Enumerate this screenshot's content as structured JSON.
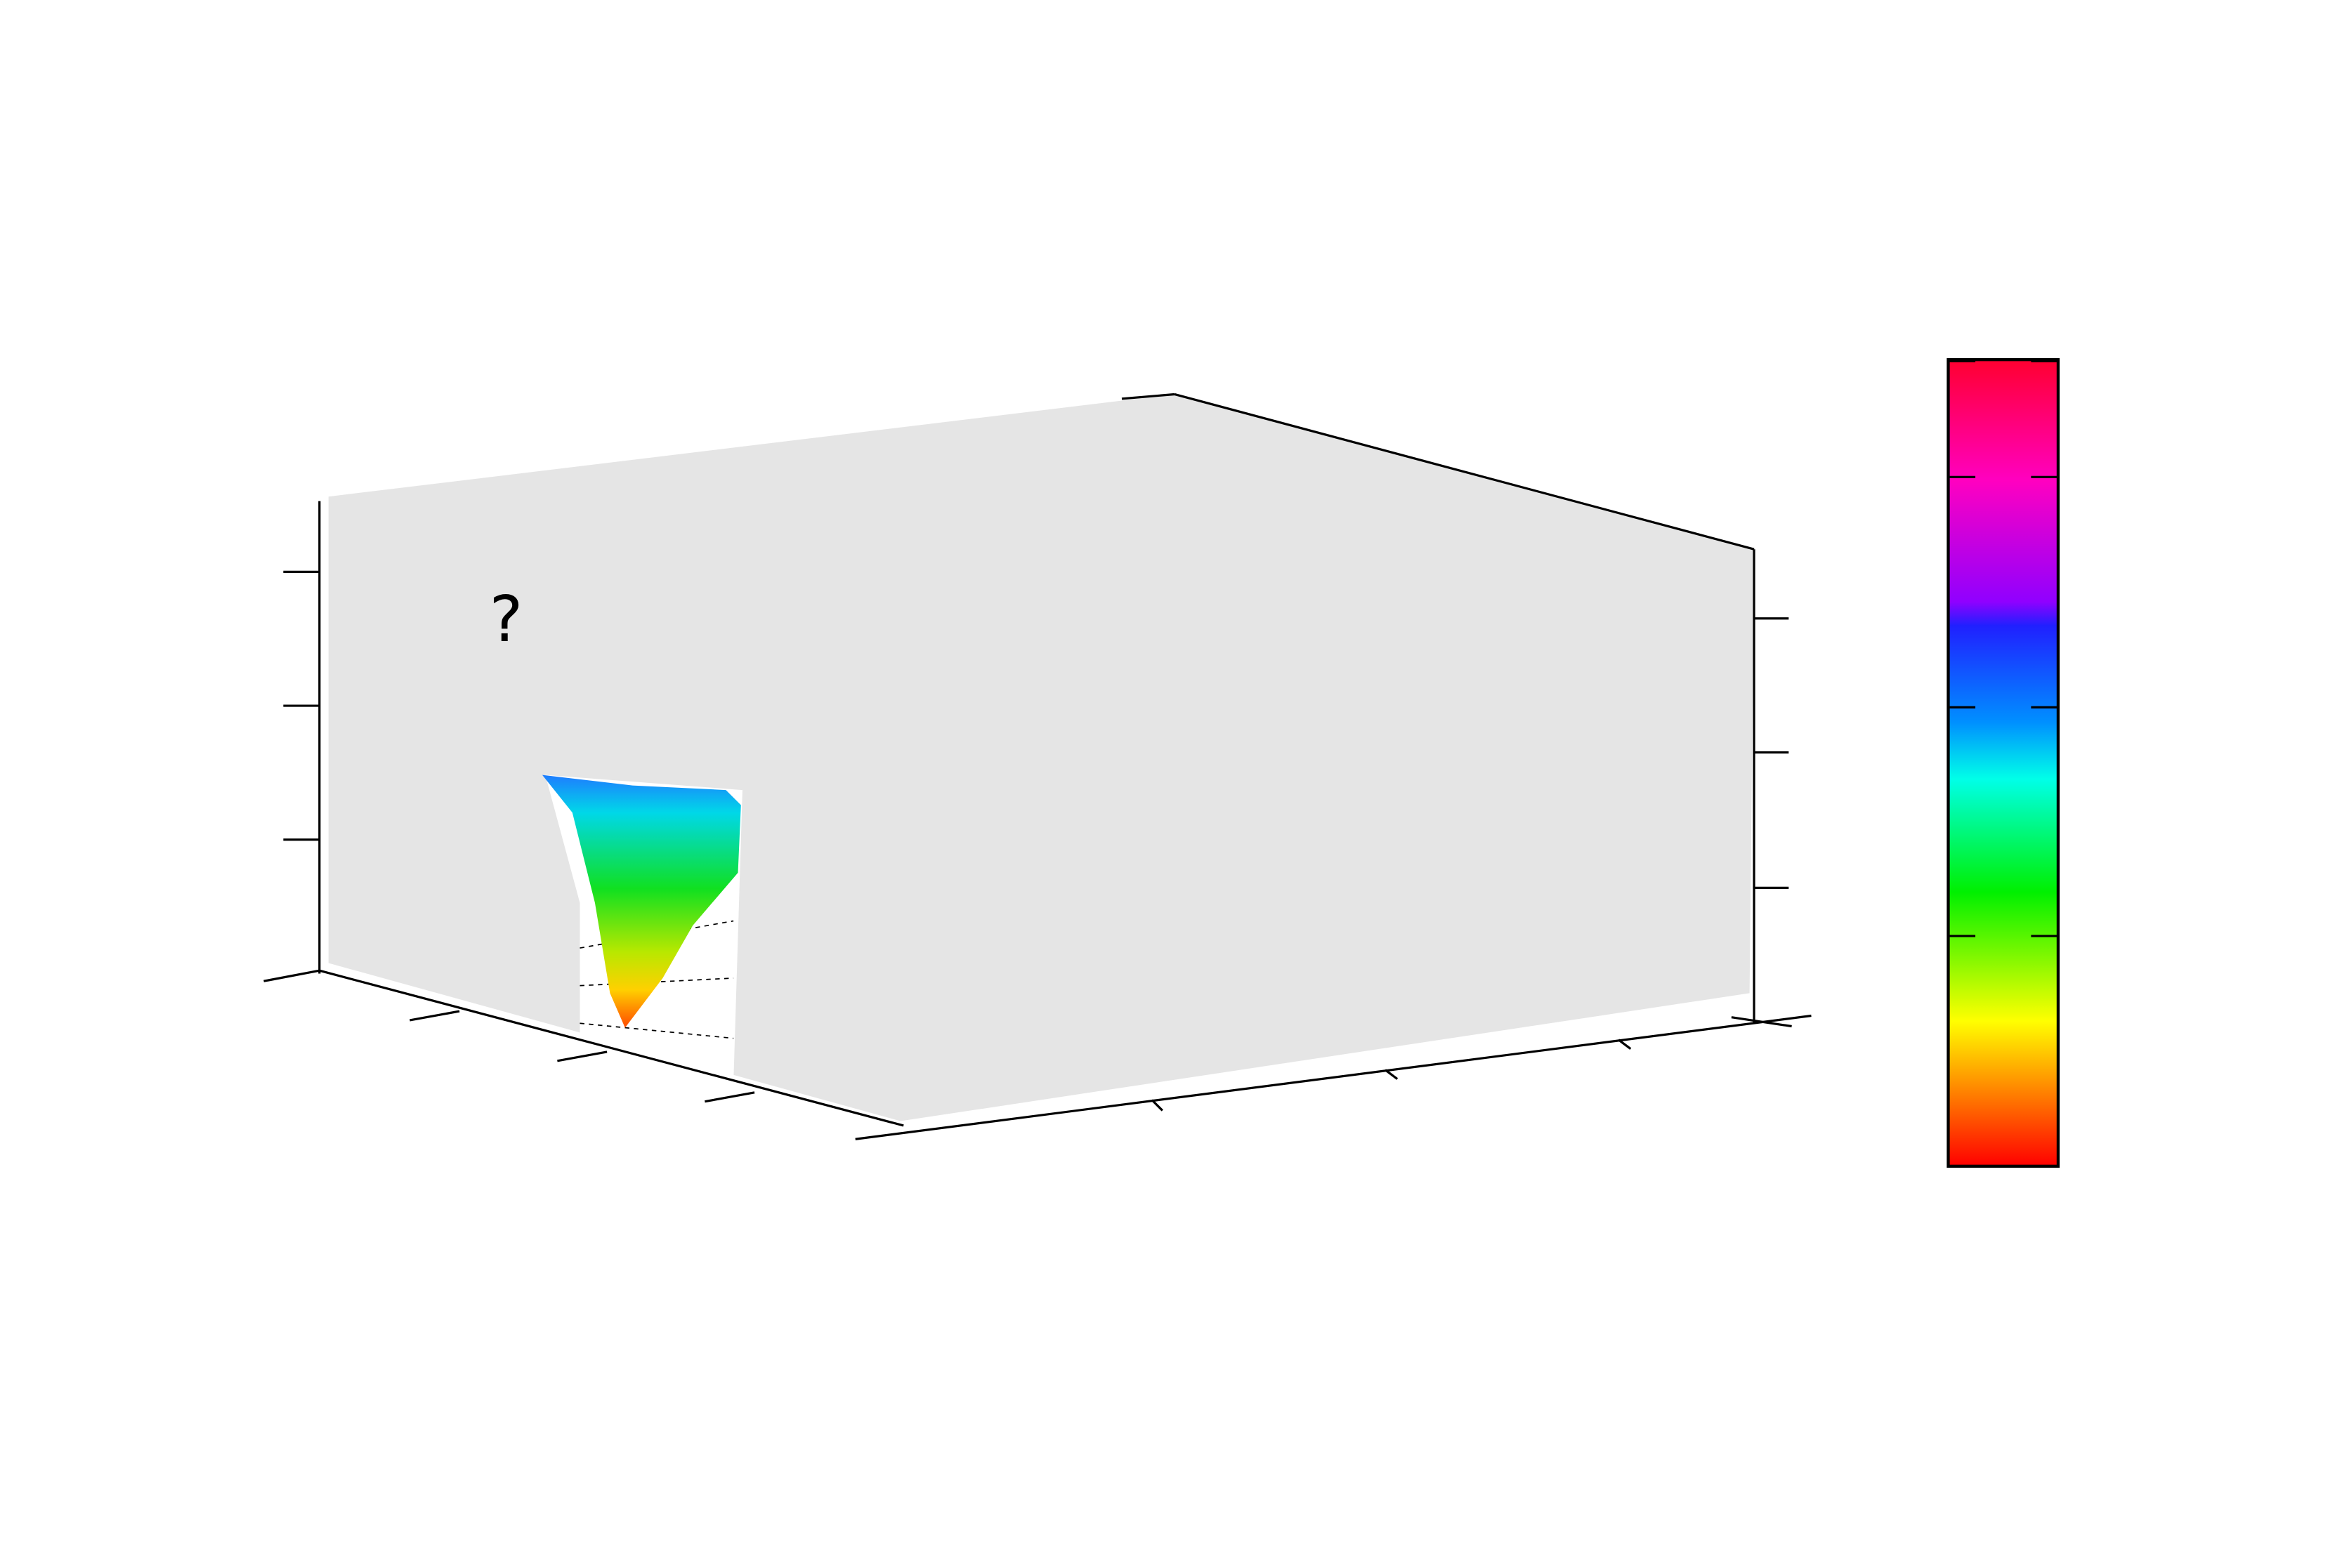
{
  "chart_data": {
    "type": "surface",
    "annotation": "?"
  }
}
